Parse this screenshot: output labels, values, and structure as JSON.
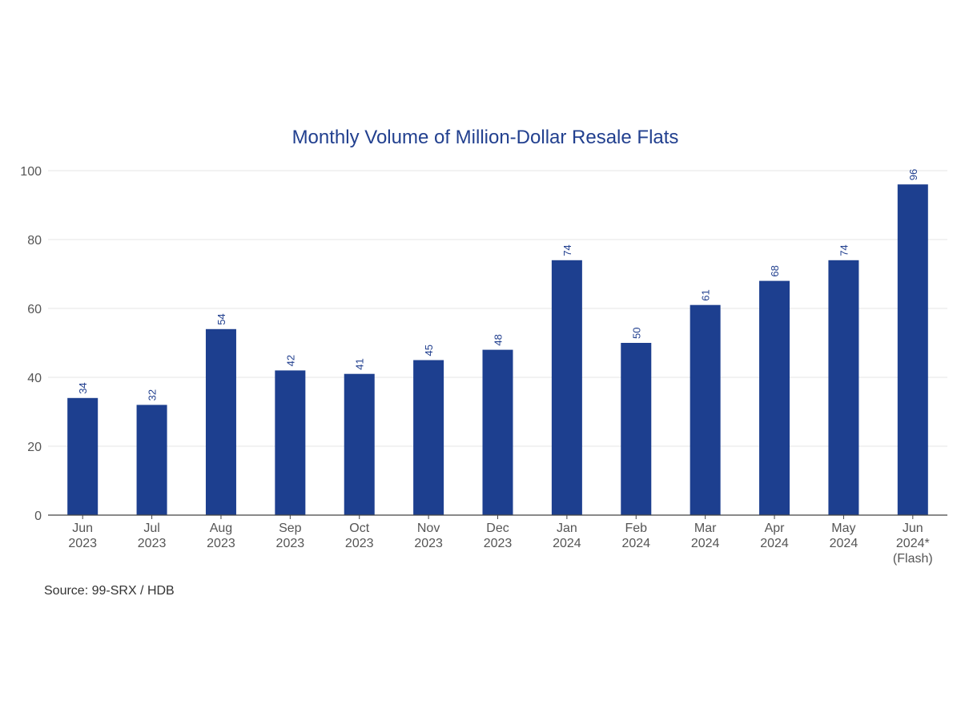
{
  "chart_data": {
    "type": "bar",
    "title": "Monthly Volume of Million-Dollar Resale Flats",
    "categories": [
      [
        "Jun",
        "2023"
      ],
      [
        "Jul",
        "2023"
      ],
      [
        "Aug",
        "2023"
      ],
      [
        "Sep",
        "2023"
      ],
      [
        "Oct",
        "2023"
      ],
      [
        "Nov",
        "2023"
      ],
      [
        "Dec",
        "2023"
      ],
      [
        "Jan",
        "2024"
      ],
      [
        "Feb",
        "2024"
      ],
      [
        "Mar",
        "2024"
      ],
      [
        "Apr",
        "2024"
      ],
      [
        "May",
        "2024"
      ],
      [
        "Jun",
        "2024*",
        "(Flash)"
      ]
    ],
    "values": [
      34,
      32,
      54,
      42,
      41,
      45,
      48,
      74,
      50,
      61,
      68,
      74,
      96
    ],
    "ylim": [
      0,
      100
    ],
    "yticks": [
      0,
      20,
      40,
      60,
      80,
      100
    ],
    "xlabel": "",
    "ylabel": "",
    "grid": true,
    "data_labels": true,
    "bar_color": "#1d3f8f",
    "label_color": "#22408f"
  },
  "source": "Source: 99-SRX / HDB"
}
